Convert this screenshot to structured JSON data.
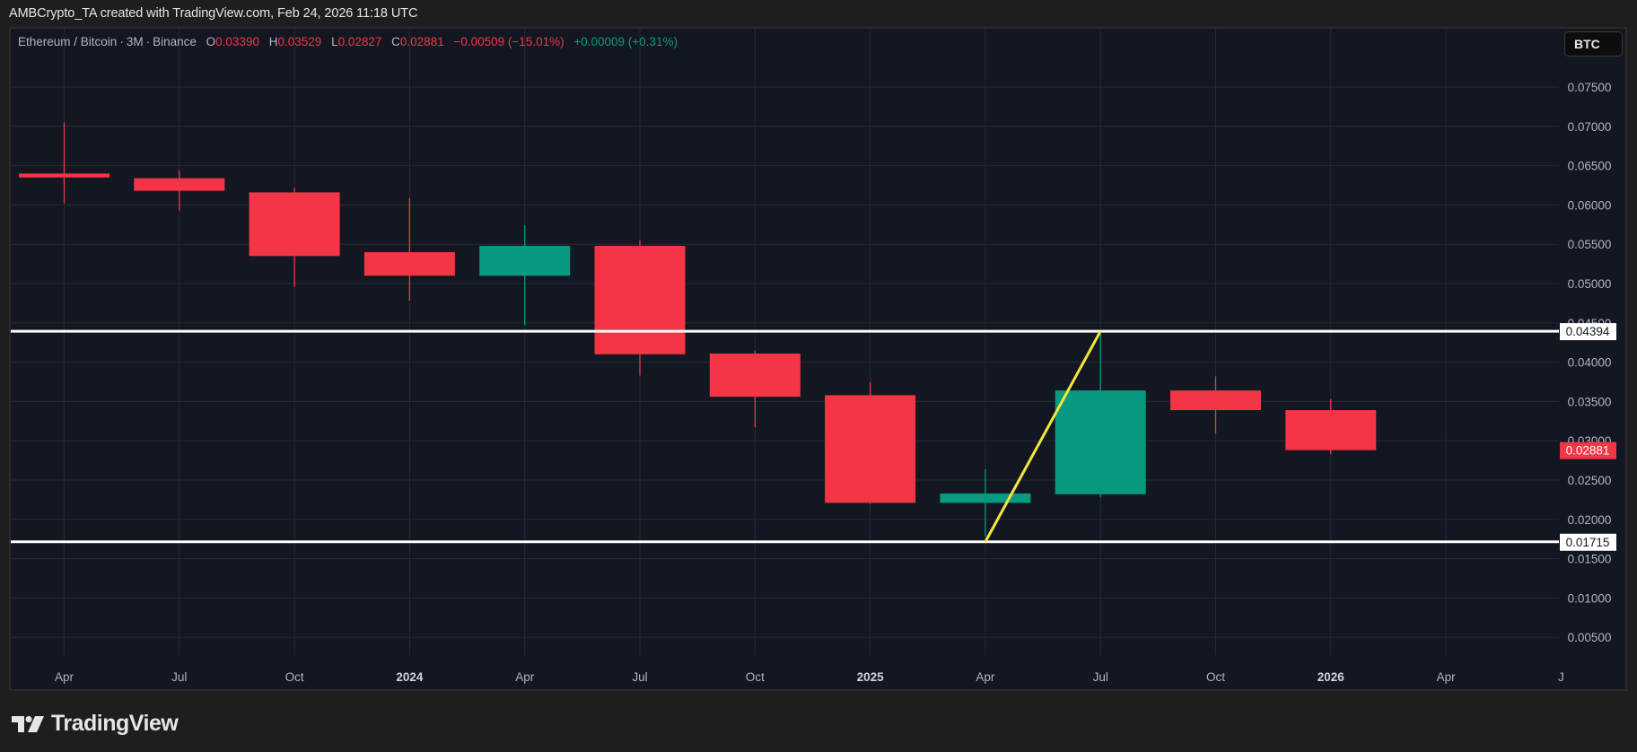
{
  "header": {
    "attribution": "AMBCrypto_TA created with TradingView.com, Feb 24, 2026 11:18 UTC"
  },
  "legend": {
    "symbol": "Ethereum / Bitcoin",
    "interval": "3M",
    "exchange": "Binance",
    "open_label": "O",
    "open": "0.03390",
    "high_label": "H",
    "high": "0.03529",
    "low_label": "L",
    "low": "0.02827",
    "close_label": "C",
    "close": "0.02881",
    "change": "−0.00509 (−15.01%)",
    "secondary_change": "+0.00009 (+0.31%)"
  },
  "currency_button": "BTC",
  "colors": {
    "background": "#131722",
    "up": "#089981",
    "down": "#f23645",
    "horizontal_line": "#ffffff",
    "trend_line": "#f5e63a",
    "grid": "#252a36",
    "axis_text": "#b2b5be"
  },
  "branding": {
    "logo_icon": "tradingview-logo-icon",
    "logo_text": "TradingView"
  },
  "chart_data": {
    "type": "candlestick",
    "title": "Ethereum / Bitcoin · 3M · Binance",
    "xlabel": "",
    "ylabel": "BTC",
    "ylim": [
      0.0,
      0.08
    ],
    "grid": true,
    "price_axis_ticks": [
      "0.07500",
      "0.07000",
      "0.06500",
      "0.06000",
      "0.05500",
      "0.05000",
      "0.04500",
      "0.04000",
      "0.03500",
      "0.03000",
      "0.02500",
      "0.02000",
      "0.01500",
      "0.01000",
      "0.00500"
    ],
    "time_axis_ticks": [
      {
        "label": "Apr",
        "bold": false
      },
      {
        "label": "Jul",
        "bold": false
      },
      {
        "label": "Oct",
        "bold": false
      },
      {
        "label": "2024",
        "bold": true
      },
      {
        "label": "Apr",
        "bold": false
      },
      {
        "label": "Jul",
        "bold": false
      },
      {
        "label": "Oct",
        "bold": false
      },
      {
        "label": "2025",
        "bold": true
      },
      {
        "label": "Apr",
        "bold": false
      },
      {
        "label": "Jul",
        "bold": false
      },
      {
        "label": "Oct",
        "bold": false
      },
      {
        "label": "2026",
        "bold": true
      },
      {
        "label": "Apr",
        "bold": false
      },
      {
        "label": "J",
        "bold": false
      }
    ],
    "candles": [
      {
        "period": "Apr 2023",
        "open": 0.064,
        "high": 0.0705,
        "low": 0.0602,
        "close": 0.0635
      },
      {
        "period": "Jul 2023",
        "open": 0.0634,
        "high": 0.0644,
        "low": 0.0593,
        "close": 0.0618
      },
      {
        "period": "Oct 2023",
        "open": 0.0616,
        "high": 0.0622,
        "low": 0.0496,
        "close": 0.0535
      },
      {
        "period": "Jan 2024",
        "open": 0.054,
        "high": 0.0609,
        "low": 0.0478,
        "close": 0.051
      },
      {
        "period": "Apr 2024",
        "open": 0.051,
        "high": 0.0574,
        "low": 0.0447,
        "close": 0.0548
      },
      {
        "period": "Jul 2024",
        "open": 0.0548,
        "high": 0.0555,
        "low": 0.0383,
        "close": 0.041
      },
      {
        "period": "Oct 2024",
        "open": 0.0411,
        "high": 0.0415,
        "low": 0.0317,
        "close": 0.0356
      },
      {
        "period": "Jan 2025",
        "open": 0.0358,
        "high": 0.0375,
        "low": 0.022,
        "close": 0.0221
      },
      {
        "period": "Apr 2025",
        "open": 0.0221,
        "high": 0.0264,
        "low": 0.0178,
        "close": 0.0233
      },
      {
        "period": "Jul 2025",
        "open": 0.0232,
        "high": 0.0436,
        "low": 0.0228,
        "close": 0.0364
      },
      {
        "period": "Oct 2025",
        "open": 0.0364,
        "high": 0.0382,
        "low": 0.0309,
        "close": 0.0339
      },
      {
        "period": "Jan 2026",
        "open": 0.0339,
        "high": 0.03529,
        "low": 0.02827,
        "close": 0.02881
      }
    ],
    "horizontal_lines": [
      {
        "price": 0.04394,
        "label": "0.04394",
        "color": "#ffffff"
      },
      {
        "price": 0.01715,
        "label": "0.01715",
        "color": "#ffffff"
      }
    ],
    "trend_lines": [
      {
        "from": {
          "period": "Apr 2025",
          "price": 0.01715
        },
        "to": {
          "period": "Jul 2025",
          "price": 0.04394
        },
        "color": "#f5e63a"
      }
    ],
    "last_price_label": {
      "value": "0.02881",
      "color": "#f23645"
    }
  }
}
